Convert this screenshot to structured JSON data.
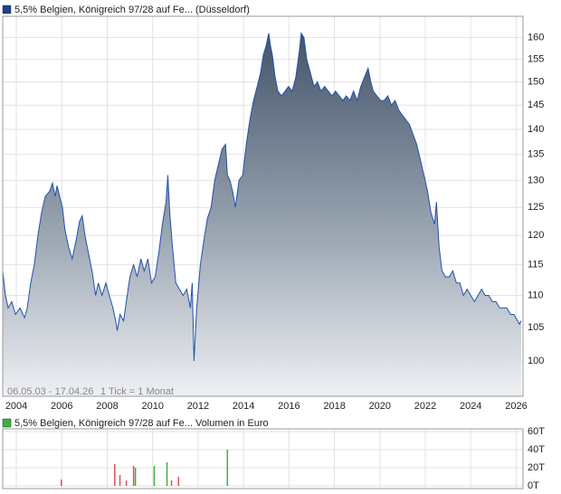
{
  "chart_data": [
    {
      "type": "area",
      "title": "5,5% Belgien, Königreich 97/28 auf Fe... (Düsseldorf)",
      "legend_color": "#1f3f8f",
      "annotations": [
        "06.05.03 - 17.04.26",
        "1 Tick = 1 Monat"
      ],
      "log_scale": true,
      "grid": true,
      "color": "#2352a8",
      "xlim": [
        2003.4,
        2026.3
      ],
      "xticks": [
        2004,
        2006,
        2008,
        2010,
        2012,
        2014,
        2016,
        2018,
        2020,
        2022,
        2024,
        2026
      ],
      "ylim": [
        95,
        165
      ],
      "yticks": [
        100,
        105,
        110,
        115,
        120,
        125,
        130,
        135,
        140,
        145,
        150,
        155,
        160
      ],
      "x": [
        2003.4,
        2003.52,
        2003.64,
        2003.8,
        2003.96,
        2004.16,
        2004.36,
        2004.48,
        2004.63,
        2004.79,
        2004.95,
        2005.11,
        2005.27,
        2005.47,
        2005.59,
        2005.71,
        2005.79,
        2005.91,
        2006.03,
        2006.14,
        2006.3,
        2006.46,
        2006.62,
        2006.78,
        2006.9,
        2007.02,
        2007.17,
        2007.33,
        2007.49,
        2007.61,
        2007.77,
        2007.94,
        2008.09,
        2008.25,
        2008.37,
        2008.44,
        2008.56,
        2008.72,
        2008.84,
        2009.0,
        2009.16,
        2009.32,
        2009.48,
        2009.63,
        2009.79,
        2009.95,
        2010.11,
        2010.27,
        2010.43,
        2010.59,
        2010.67,
        2010.75,
        2010.87,
        2011.02,
        2011.18,
        2011.34,
        2011.5,
        2011.66,
        2011.74,
        2011.82,
        2011.94,
        2012.1,
        2012.25,
        2012.41,
        2012.57,
        2012.73,
        2012.89,
        2013.05,
        2013.21,
        2013.29,
        2013.4,
        2013.52,
        2013.64,
        2013.8,
        2013.96,
        2014.12,
        2014.28,
        2014.44,
        2014.6,
        2014.75,
        2014.87,
        2014.99,
        2015.11,
        2015.19,
        2015.27,
        2015.39,
        2015.51,
        2015.67,
        2015.83,
        2015.98,
        2016.14,
        2016.3,
        2016.46,
        2016.54,
        2016.66,
        2016.78,
        2016.94,
        2017.1,
        2017.25,
        2017.41,
        2017.57,
        2017.73,
        2017.89,
        2018.05,
        2018.21,
        2018.37,
        2018.52,
        2018.68,
        2018.84,
        2019.0,
        2019.16,
        2019.32,
        2019.48,
        2019.6,
        2019.71,
        2019.87,
        2020.03,
        2020.19,
        2020.35,
        2020.51,
        2020.67,
        2020.83,
        2020.98,
        2021.14,
        2021.3,
        2021.46,
        2021.62,
        2021.78,
        2021.94,
        2022.1,
        2022.25,
        2022.41,
        2022.49,
        2022.61,
        2022.73,
        2022.89,
        2023.05,
        2023.21,
        2023.37,
        2023.52,
        2023.68,
        2023.84,
        2024.0,
        2024.16,
        2024.32,
        2024.48,
        2024.63,
        2024.79,
        2024.95,
        2025.11,
        2025.27,
        2025.43,
        2025.59,
        2025.75,
        2025.9,
        2026.06,
        2026.14,
        2026.22
      ],
      "values": [
        114,
        110,
        108,
        109,
        107,
        108,
        106.5,
        108,
        112,
        115,
        120,
        124,
        127,
        128,
        129.5,
        127,
        129,
        127,
        125,
        121,
        118,
        116,
        119,
        122.5,
        123.5,
        120,
        117,
        114,
        110,
        112,
        110,
        112,
        110,
        108,
        106,
        104.5,
        107,
        106,
        109,
        113,
        115,
        113,
        116,
        114,
        116,
        112,
        113,
        117,
        122,
        126,
        131,
        124,
        118,
        112,
        111,
        110,
        111,
        108,
        112,
        100,
        108,
        115,
        119,
        123,
        125,
        130,
        133,
        136,
        137,
        131,
        130,
        128,
        125,
        130,
        131,
        137,
        142,
        146,
        149,
        152,
        156,
        158,
        161,
        158,
        156,
        151,
        148,
        147,
        148,
        149,
        148,
        151,
        157,
        161,
        160,
        155,
        152,
        149,
        150,
        148,
        149,
        148,
        147,
        148,
        147,
        146,
        147,
        146,
        148,
        146,
        149,
        151,
        153,
        150,
        148,
        147,
        146,
        146,
        147,
        145,
        146,
        144,
        143,
        142,
        141,
        139,
        137,
        134,
        131,
        128,
        124,
        122,
        126,
        118,
        114,
        113,
        113,
        114,
        112,
        112,
        110,
        111,
        110,
        109,
        110,
        111,
        110,
        110,
        109,
        109,
        108,
        108,
        108,
        107,
        107,
        106,
        105.5,
        106
      ]
    },
    {
      "type": "bar",
      "title": "5,5% Belgien, Königreich 97/28 auf Fe... Volumen in Euro",
      "legend_color": "#3cb043",
      "grid": true,
      "xlim": [
        2003.4,
        2026.3
      ],
      "xticks": [
        2004,
        2006,
        2008,
        2010,
        2012,
        2014,
        2016,
        2018,
        2020,
        2022,
        2024,
        2026
      ],
      "ylim": [
        0,
        63
      ],
      "yticks": [
        {
          "value": 0,
          "label": "0T"
        },
        {
          "value": 20,
          "label": "20T"
        },
        {
          "value": 40,
          "label": "40T"
        },
        {
          "value": 60,
          "label": "60T"
        }
      ],
      "x": [
        2005.98,
        2008.33,
        2008.56,
        2008.84,
        2009.16,
        2009.24,
        2010.07,
        2010.63,
        2010.83,
        2011.14,
        2013.29
      ],
      "values": [
        7,
        24,
        12,
        6,
        22,
        20,
        22,
        26,
        6,
        10,
        40
      ],
      "colors": [
        "#e05050",
        "#e05050",
        "#e05050",
        "#e05050",
        "#e05050",
        "#3cb043",
        "#3cb043",
        "#3cb043",
        "#e05050",
        "#e05050",
        "#3cb043"
      ]
    }
  ]
}
